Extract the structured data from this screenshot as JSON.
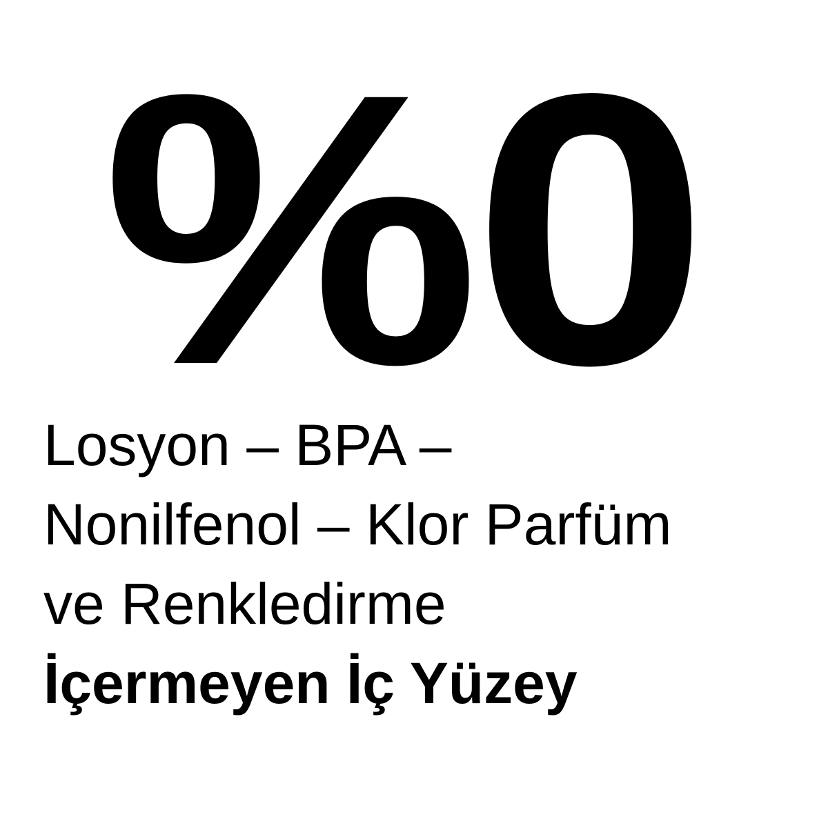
{
  "headline": "%0",
  "lines": [
    "Losyon – BPA –",
    "Nonilfenol – Klor Parfüm",
    "ve Renkledirme"
  ],
  "emphasis_line": "İçermeyen İç Yüzey",
  "colors": {
    "text": "#000000",
    "background": "#ffffff"
  }
}
